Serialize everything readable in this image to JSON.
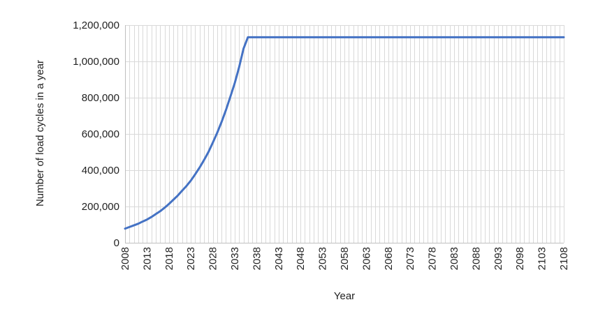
{
  "chart_data": {
    "type": "line",
    "title": "",
    "xlabel": "Year",
    "ylabel": "Number of load cycles in a year",
    "xlim": [
      2008,
      2108
    ],
    "ylim": [
      0,
      1200000
    ],
    "x_tick_labels": [
      "2008",
      "2013",
      "2018",
      "2023",
      "2028",
      "2033",
      "2038",
      "2043",
      "2048",
      "2053",
      "2058",
      "2063",
      "2068",
      "2073",
      "2078",
      "2083",
      "2088",
      "2093",
      "2098",
      "2103",
      "2108"
    ],
    "y_tick_labels": [
      "0",
      "200,000",
      "400,000",
      "600,000",
      "800,000",
      "1,000,000",
      "1,200,000"
    ],
    "y_ticks": [
      0,
      200000,
      400000,
      600000,
      800000,
      1000000,
      1200000
    ],
    "grid": true,
    "legend": "none",
    "series": [
      {
        "color": "#4472C4",
        "x": [
          2008,
          2009,
          2010,
          2011,
          2012,
          2013,
          2014,
          2015,
          2016,
          2017,
          2018,
          2019,
          2020,
          2021,
          2022,
          2023,
          2024,
          2025,
          2026,
          2027,
          2028,
          2029,
          2030,
          2031,
          2032,
          2033,
          2034,
          2035,
          2036,
          2108
        ],
        "y": [
          78000,
          87000,
          96000,
          105000,
          117000,
          128000,
          142000,
          158000,
          174000,
          193000,
          214000,
          237000,
          260000,
          287000,
          313000,
          343000,
          378000,
          415000,
          456000,
          500000,
          552000,
          606000,
          666000,
          732000,
          805000,
          880000,
          968000,
          1070000,
          1133000,
          1133000
        ]
      }
    ]
  }
}
